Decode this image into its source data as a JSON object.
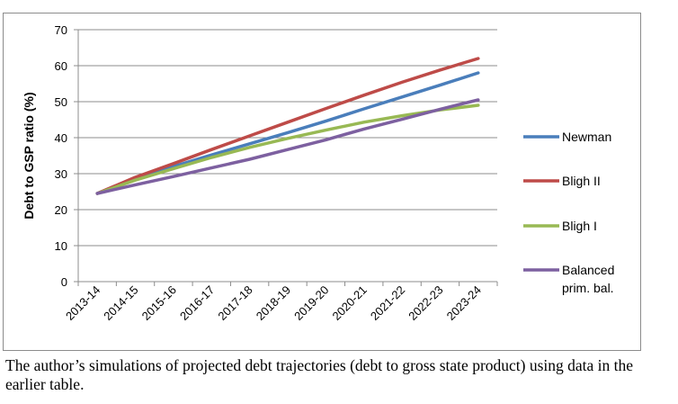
{
  "caption": "The author’s simulations of projected debt trajectories (debt to gross state product) using data in the earlier table.",
  "chart_data": {
    "type": "line",
    "title": "",
    "xlabel": "",
    "ylabel": "Debt to GSP ratio (%)",
    "ylim": [
      0,
      70
    ],
    "yticks": [
      0,
      10,
      20,
      30,
      40,
      50,
      60,
      70
    ],
    "grid": "horizontal",
    "legend_position": "right",
    "categories": [
      "2013-14",
      "2014-15",
      "2015-16",
      "2016-17",
      "2017-18",
      "2018-19",
      "2019-20",
      "2020-21",
      "2021-22",
      "2022-23",
      "2023-24"
    ],
    "series": [
      {
        "name": "Newman",
        "color": "#4a7ebb",
        "values": [
          24.5,
          28.8,
          32.0,
          35.2,
          38.3,
          41.4,
          44.6,
          48.0,
          51.3,
          54.6,
          58.0
        ]
      },
      {
        "name": "Bligh II",
        "color": "#be4b48",
        "values": [
          24.5,
          29.0,
          32.8,
          36.7,
          40.5,
          44.3,
          48.1,
          51.8,
          55.4,
          58.8,
          62.0
        ]
      },
      {
        "name": "Bligh I",
        "color": "#98b954",
        "values": [
          24.5,
          28.2,
          31.4,
          34.5,
          37.3,
          39.8,
          42.1,
          44.3,
          46.1,
          47.7,
          49.0
        ]
      },
      {
        "name": "Balanced\nprim. bal.",
        "color": "#7d60a0",
        "values": [
          24.5,
          26.9,
          29.2,
          31.6,
          34.0,
          36.7,
          39.4,
          42.4,
          45.1,
          47.9,
          50.5
        ]
      }
    ]
  }
}
